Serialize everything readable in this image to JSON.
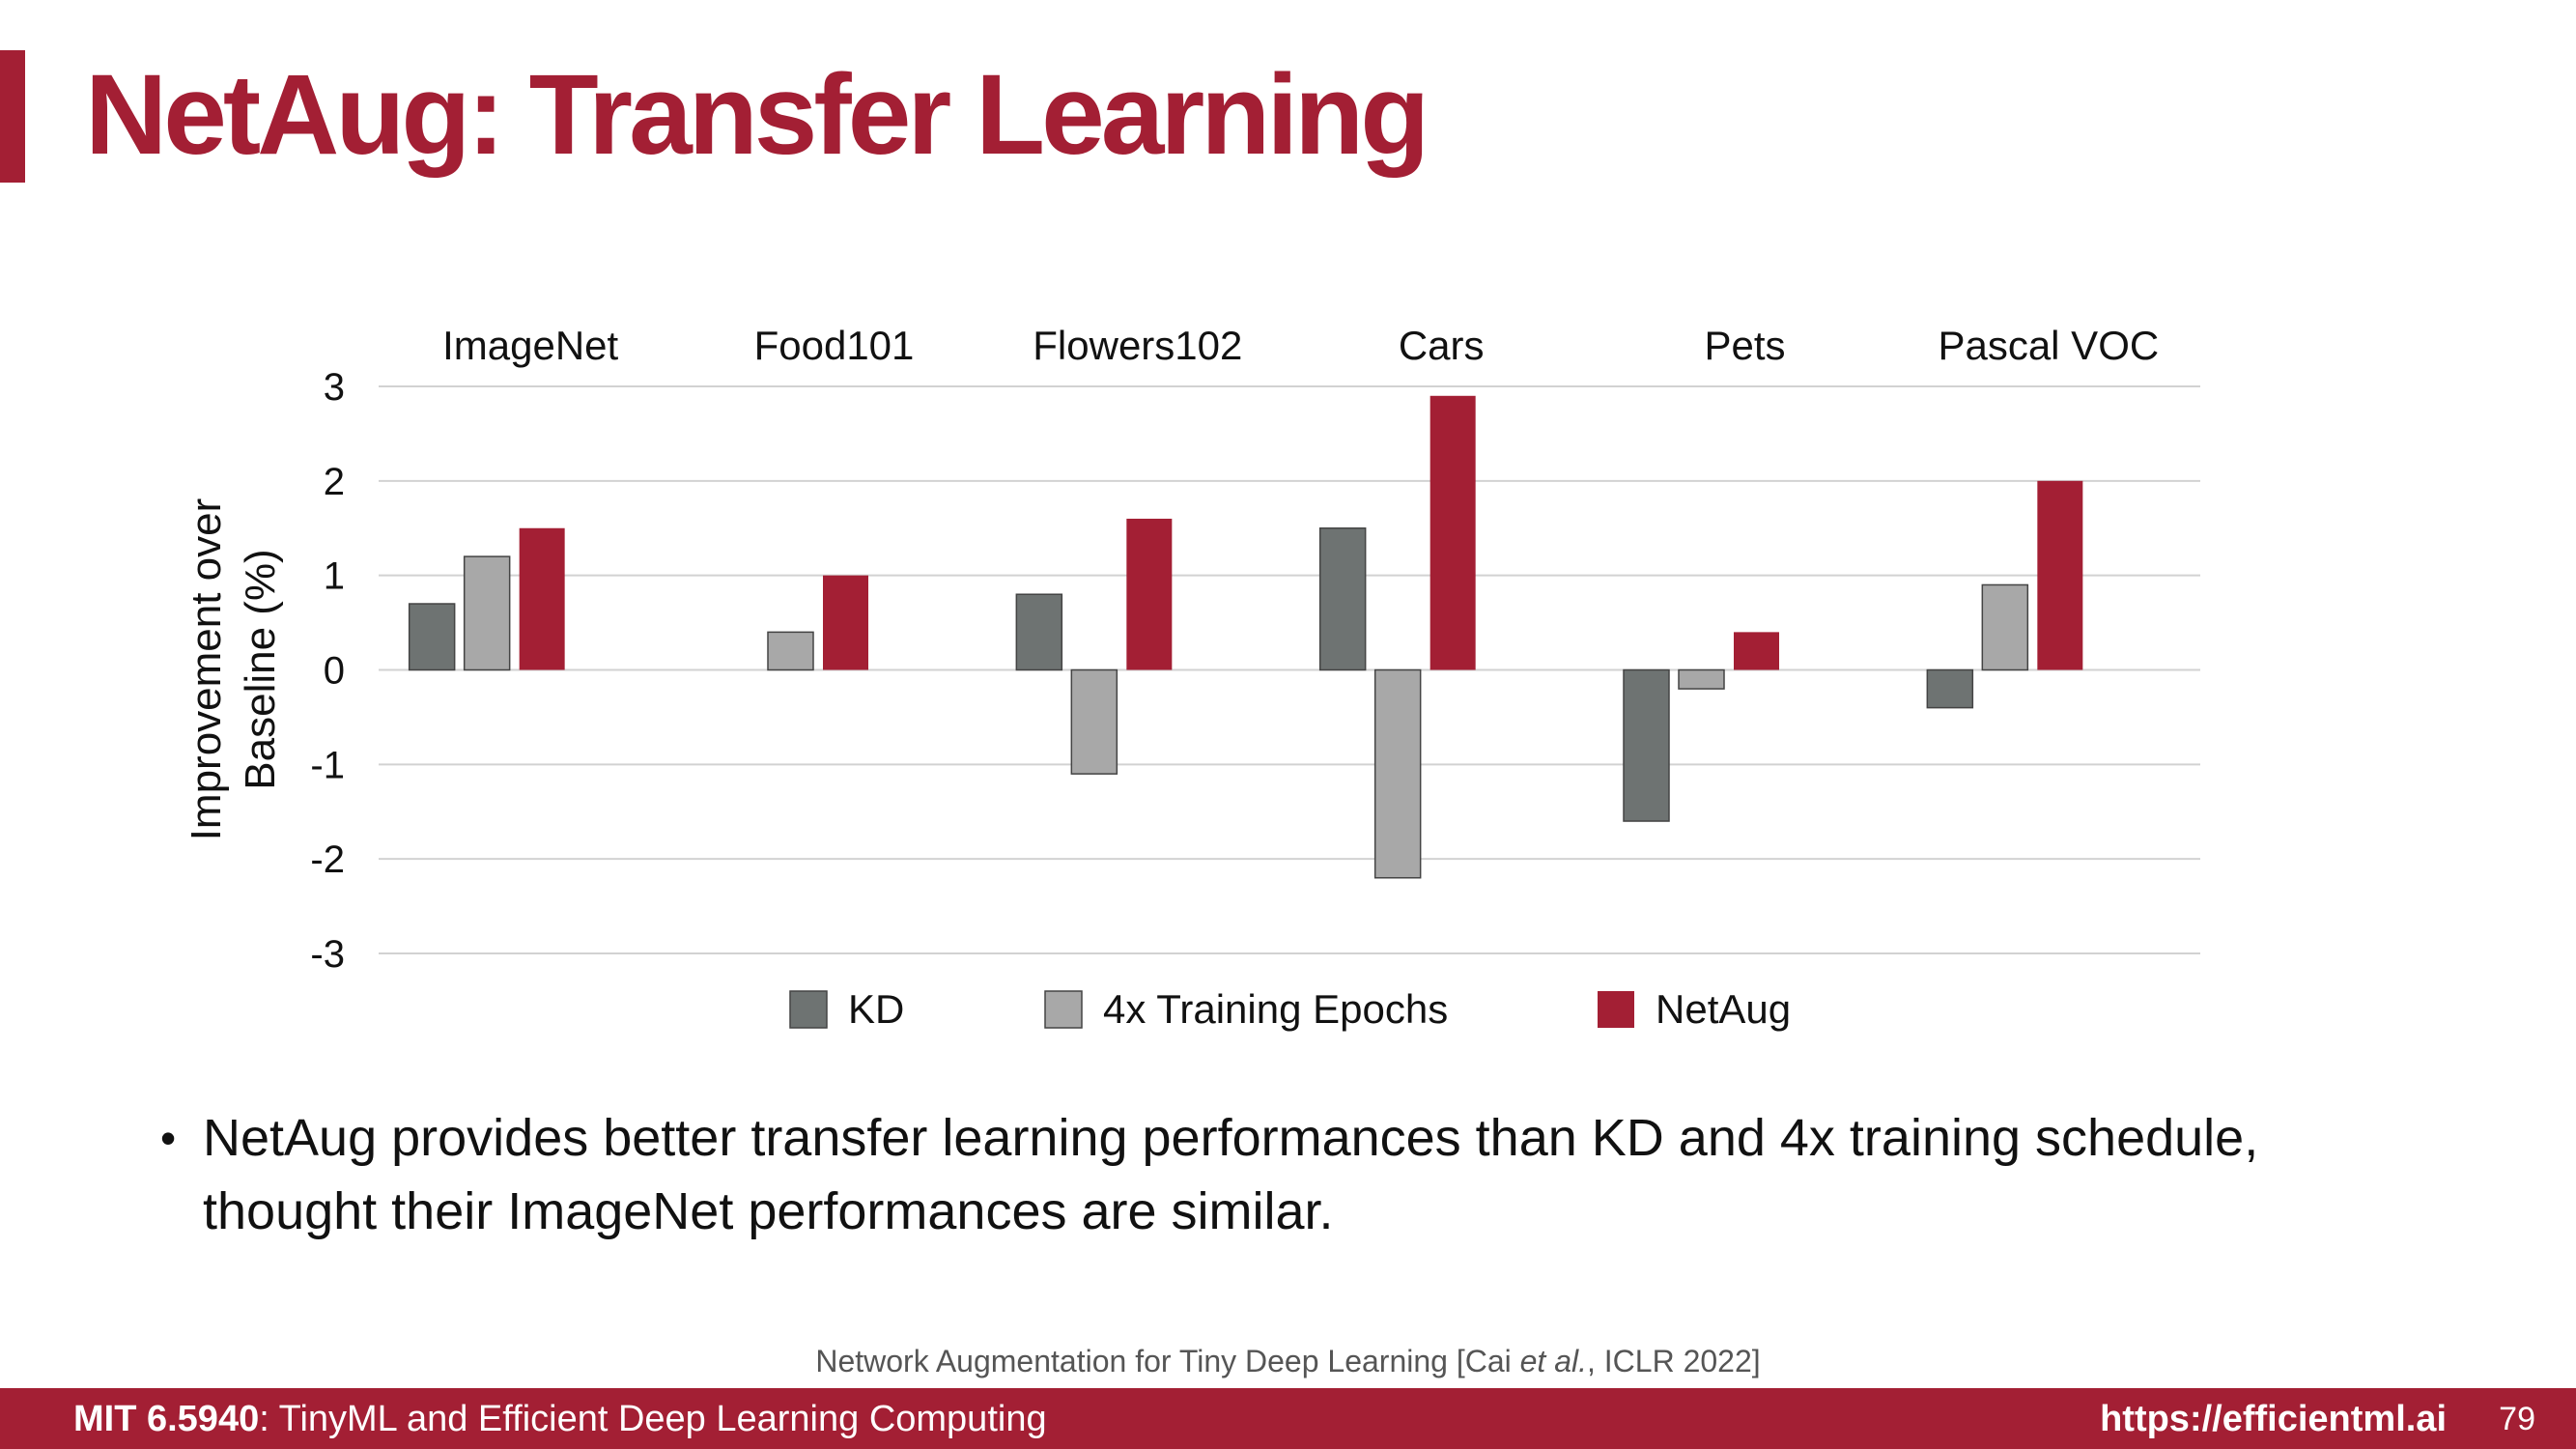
{
  "slide": {
    "title": "NetAug: Transfer Learning",
    "bullets": [
      {
        "line1": "NetAug provides better transfer learning performances than KD and 4x training schedule,",
        "line2": "thought their ImageNet performances are similar."
      }
    ],
    "citation": {
      "prefix": "Network Augmentation for Tiny Deep Learning [Cai ",
      "italic": "et al.",
      "suffix": ", ICLR 2022]"
    },
    "footer": {
      "course_code": "MIT 6.5940",
      "course_name": ": TinyML and Efficient Deep Learning Computing",
      "url": "https://efficientml.ai",
      "page_number": "79"
    }
  },
  "chart_data": {
    "type": "bar",
    "categories": [
      "ImageNet",
      "Food101",
      "Flowers102",
      "Cars",
      "Pets",
      "Pascal VOC"
    ],
    "series": [
      {
        "name": "KD",
        "color": "#6e7372",
        "values": [
          0.7,
          null,
          0.8,
          1.5,
          -1.6,
          -0.4
        ]
      },
      {
        "name": "4x Training Epochs",
        "color": "#a8a8a8",
        "values": [
          1.2,
          0.4,
          -1.1,
          -2.2,
          -0.2,
          0.9
        ]
      },
      {
        "name": "NetAug",
        "color": "#a31f34",
        "values": [
          1.5,
          1.0,
          1.6,
          2.9,
          0.4,
          2.0
        ]
      }
    ],
    "ylabel": "Improvement over Baseline (%)",
    "ylabel_lines": [
      "Improvement over",
      "Baseline (%)"
    ],
    "ylim": [
      -3,
      3
    ],
    "yticks": [
      3,
      2,
      1,
      0,
      -1,
      -2,
      -3
    ],
    "grid": true,
    "legend_position": "bottom",
    "category_labels_position": "top"
  }
}
